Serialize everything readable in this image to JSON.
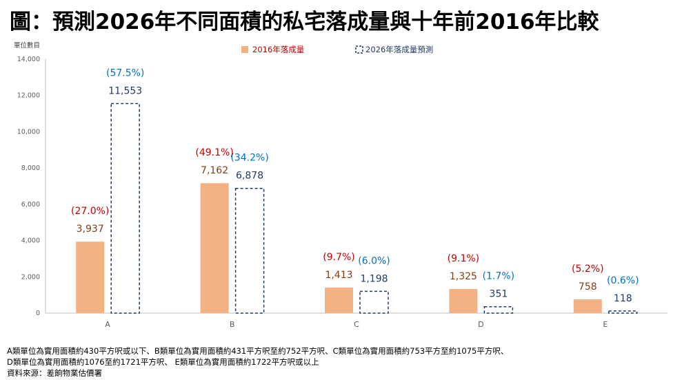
{
  "title": "圖：預測2026年不同面積的私宅落成量與十年前2016年比較",
  "colors": {
    "bar_2016": "#F4B183",
    "bar_2026_border": "#1F3864",
    "label_2016": "#843C0C",
    "label_2026": "#1F3864",
    "pct_2016": "#C00000",
    "pct_2026": "#0070C0"
  },
  "chart_data": {
    "type": "bar",
    "ylabel": "單位數目",
    "ylim": [
      0,
      14000
    ],
    "yticks": [
      "0",
      "2,000",
      "4,000",
      "6,000",
      "8,000",
      "10,000",
      "12,000",
      "14,000"
    ],
    "categories": [
      "A",
      "B",
      "C",
      "D",
      "E"
    ],
    "legend_position": "top",
    "series": [
      {
        "name": "2016年落成量",
        "values": [
          3937,
          7162,
          1413,
          1325,
          758
        ],
        "value_labels": [
          "3,937",
          "7,162",
          "1,413",
          "1,325",
          "758"
        ],
        "pct_labels": [
          "(27.0%)",
          "(49.1%)",
          "(9.7%)",
          "(9.1%)",
          "(5.2%)"
        ]
      },
      {
        "name": "2026年落成量預測",
        "values": [
          11553,
          6878,
          1198,
          351,
          118
        ],
        "value_labels": [
          "11,553",
          "6,878",
          "1,198",
          "351",
          "118"
        ],
        "pct_labels": [
          "(57.5%)",
          "(34.2%)",
          "(6.0%)",
          "(1.7%)",
          "(0.6%)"
        ]
      }
    ]
  },
  "notes": {
    "line1": "A類單位為實用面積約430平方呎或以下、B類單位為實用面積約431平方呎至約752平方呎、C類單位為實用面積約753平方至約1075平方呎、",
    "line2": "D類單位為實用面積約1076至約1721平方呎、 E類單位為實用面積約1722平方呎或以上",
    "line3": "資料來源：差餉物業估價署"
  }
}
